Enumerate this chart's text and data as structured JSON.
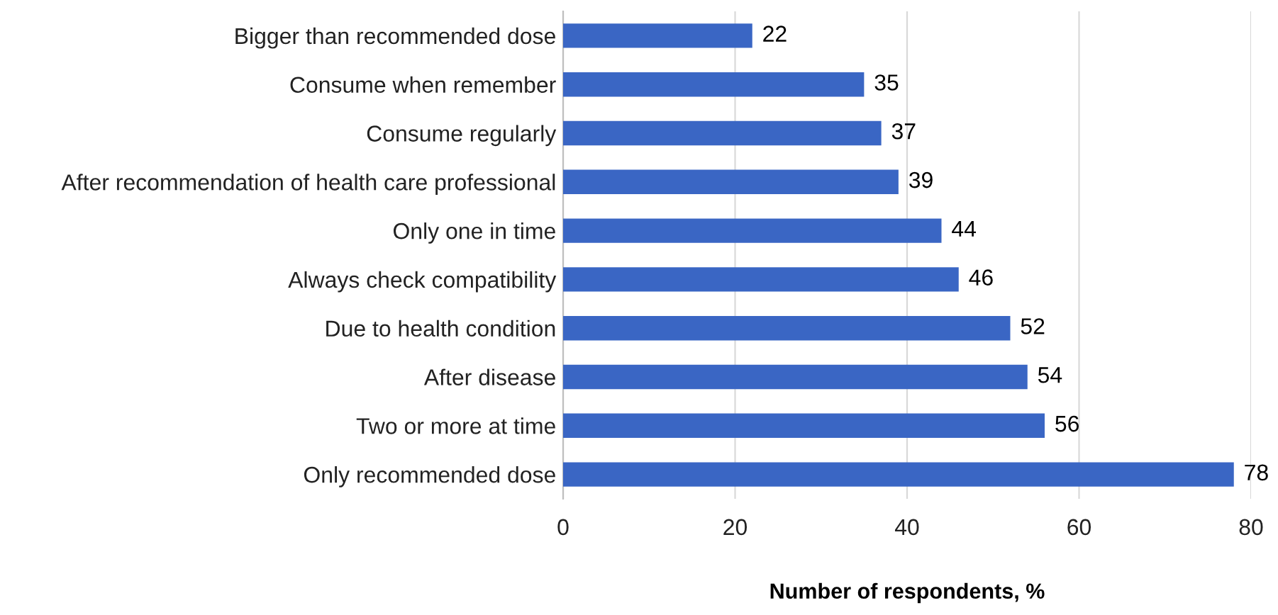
{
  "chart_data": {
    "type": "bar",
    "orientation": "horizontal",
    "xlabel": "Number of respondents, %",
    "categories": [
      "Bigger than recommended dose",
      "Consume when remember",
      "Consume regularly",
      "After recommendation of health care professional",
      "Only one in time",
      "Always check compatibility",
      "Due to health condition",
      "After disease",
      "Two or more at time",
      "Only recommended dose"
    ],
    "values": [
      22,
      35,
      37,
      39,
      44,
      46,
      52,
      54,
      56,
      78
    ],
    "color": "#3a66c4",
    "xlim": [
      0,
      80
    ],
    "xticks": [
      0,
      20,
      40,
      60,
      80
    ],
    "grid": "x",
    "data_labels": true
  }
}
